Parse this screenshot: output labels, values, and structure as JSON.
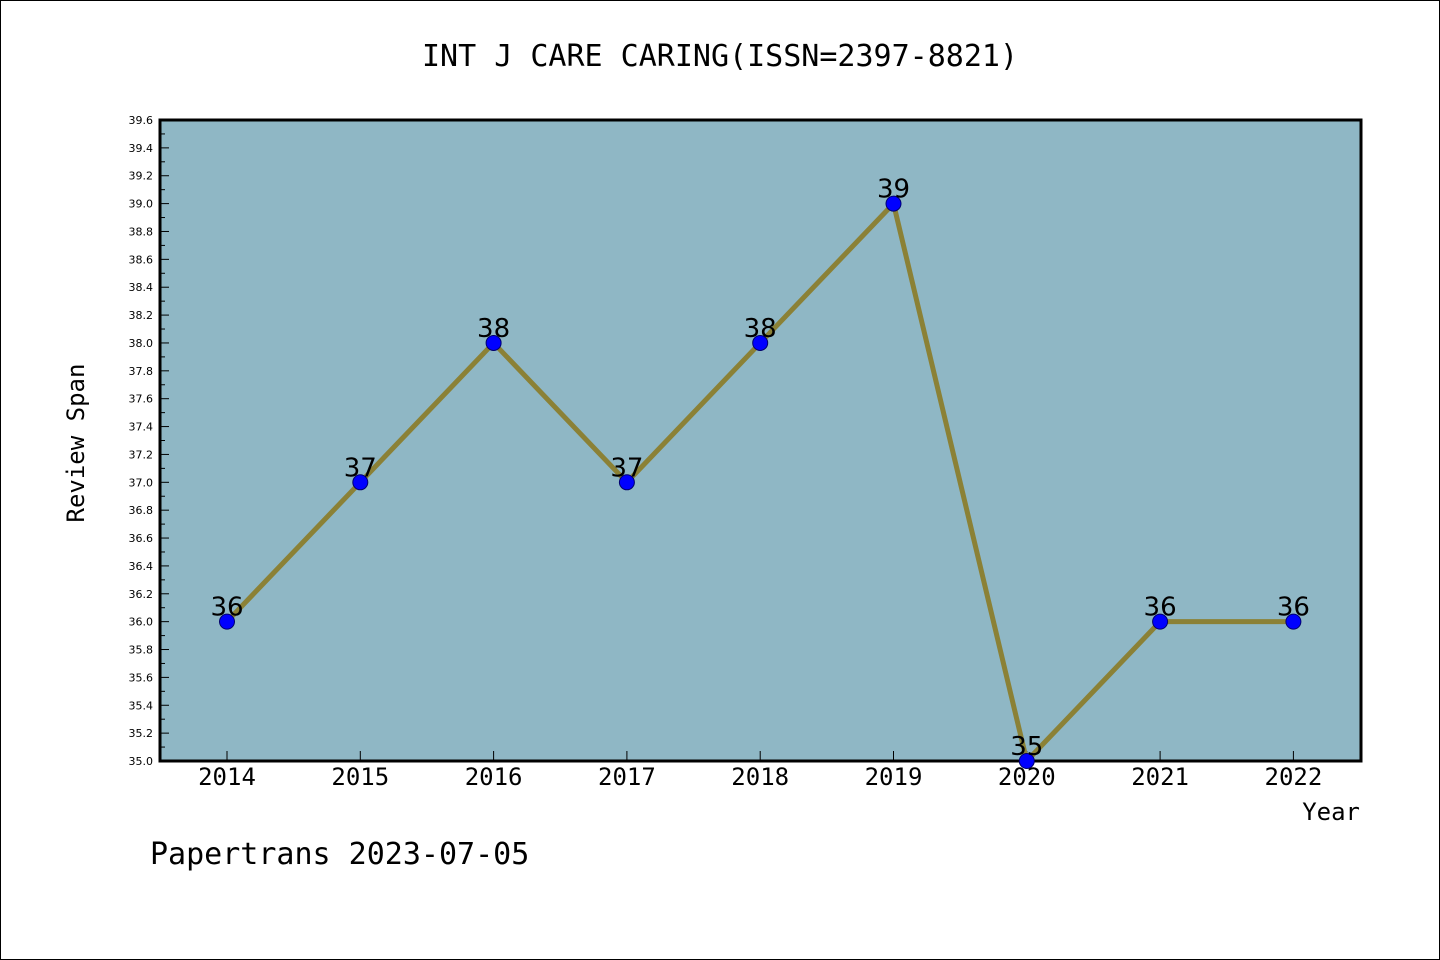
{
  "chart_data": {
    "type": "line",
    "title": "INT J CARE CARING(ISSN=2397-8821)",
    "xlabel": "Year",
    "ylabel": "Review Span",
    "categories": [
      "2014",
      "2015",
      "2016",
      "2017",
      "2018",
      "2019",
      "2020",
      "2021",
      "2022"
    ],
    "series": [
      {
        "values": [
          36,
          37,
          38,
          37,
          38,
          39,
          35,
          36,
          36
        ]
      }
    ],
    "ylim": [
      35.0,
      39.6
    ],
    "yticks": [
      "35.0",
      "35.2",
      "35.4",
      "35.6",
      "35.8",
      "36.0",
      "36.2",
      "36.4",
      "36.6",
      "36.8",
      "37.0",
      "37.2",
      "37.4",
      "37.6",
      "37.8",
      "38.0",
      "38.2",
      "38.4",
      "38.6",
      "38.8",
      "39.0",
      "39.2",
      "39.4",
      "39.6"
    ],
    "data_labels": [
      "36",
      "37",
      "38",
      "37",
      "38",
      "39",
      "35",
      "36",
      "36"
    ],
    "grid": false,
    "legend": "none",
    "colors": {
      "plot_background": "#8fb7c5",
      "line": "#8b8136",
      "marker": "#0000ff"
    }
  },
  "footer": {
    "text": "Papertrans 2023-07-05"
  }
}
